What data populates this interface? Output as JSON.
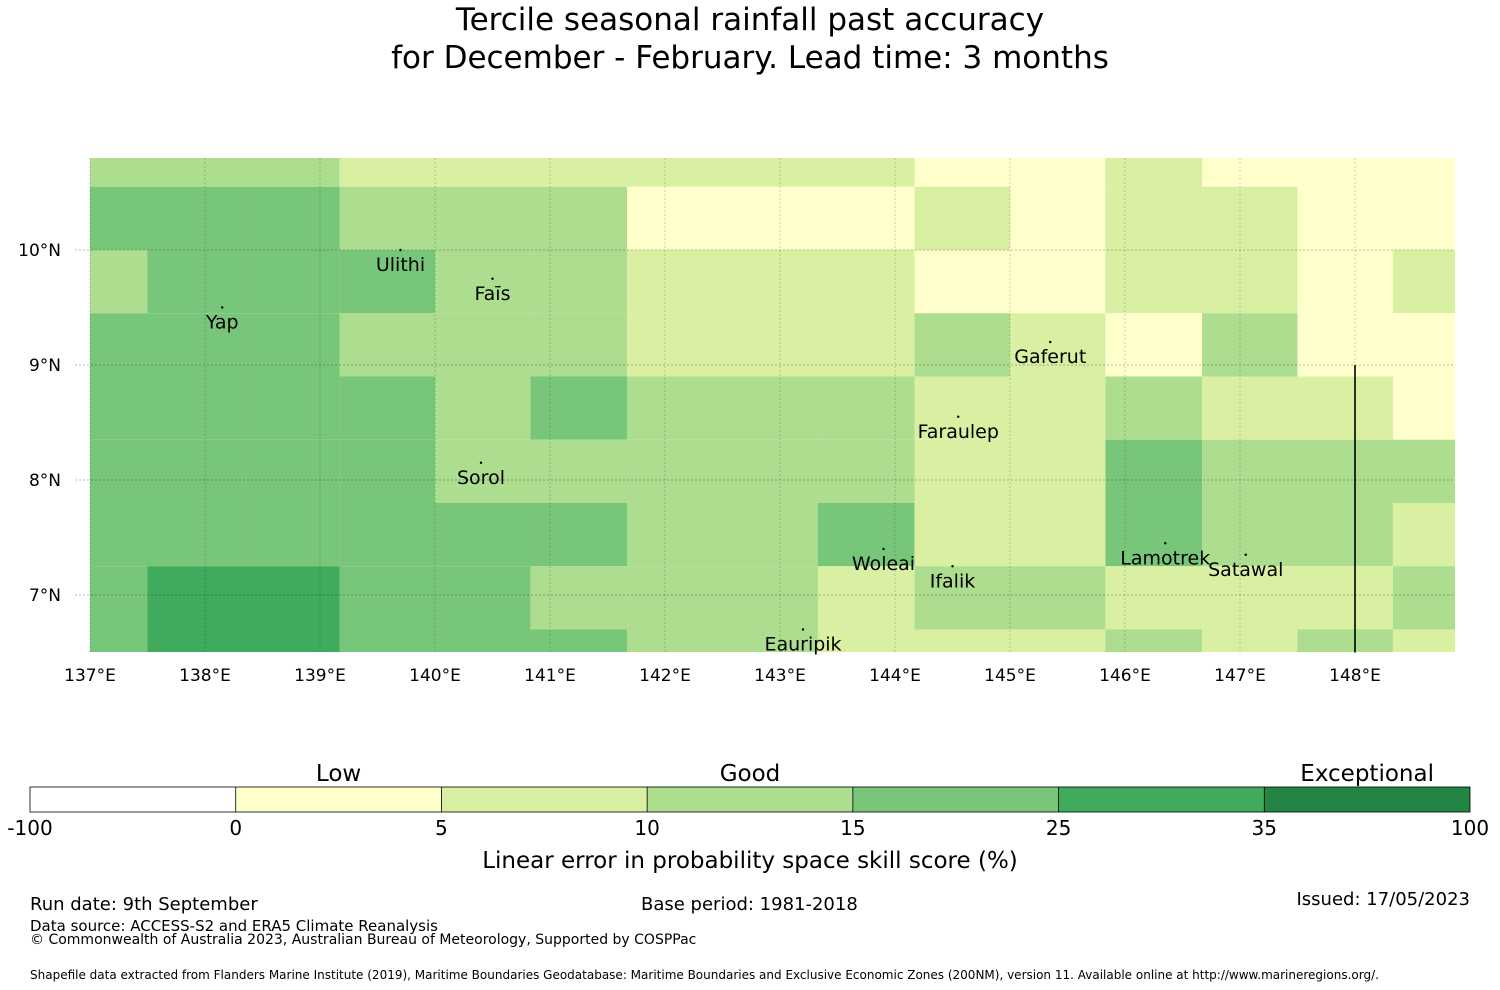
{
  "title": {
    "line1": "Tercile seasonal rainfall past accuracy",
    "line2": "for December - February. Lead time: 3 months"
  },
  "map": {
    "lon_ticks": [
      {
        "lon": 137,
        "label": "137°E"
      },
      {
        "lon": 138,
        "label": "138°E"
      },
      {
        "lon": 139,
        "label": "139°E"
      },
      {
        "lon": 140,
        "label": "140°E"
      },
      {
        "lon": 141,
        "label": "141°E"
      },
      {
        "lon": 142,
        "label": "142°E"
      },
      {
        "lon": 143,
        "label": "143°E"
      },
      {
        "lon": 144,
        "label": "144°E"
      },
      {
        "lon": 145,
        "label": "145°E"
      },
      {
        "lon": 146,
        "label": "146°E"
      },
      {
        "lon": 147,
        "label": "147°E"
      },
      {
        "lon": 148,
        "label": "148°E"
      }
    ],
    "lat_ticks": [
      {
        "lat": 10,
        "label": "10°N"
      },
      {
        "lat": 9,
        "label": "9°N"
      },
      {
        "lat": 8,
        "label": "8°N"
      },
      {
        "lat": 7,
        "label": "7°N"
      }
    ],
    "grid_columns_lon": [
      137,
      137.5,
      138.33,
      139.17,
      140,
      140.83,
      141.67,
      142.5,
      143.33,
      144.17,
      145,
      145.83,
      146.67,
      147.5,
      148.33,
      149
    ],
    "grid_rows_lat": [
      10.8,
      10.55,
      10.0,
      9.45,
      8.9,
      8.35,
      7.8,
      7.25,
      6.7,
      6.5
    ],
    "category_grid": [
      [
        3,
        3,
        3,
        2,
        2,
        2,
        2,
        2,
        2,
        1,
        1,
        2,
        1,
        1,
        1
      ],
      [
        4,
        4,
        4,
        3,
        3,
        3,
        1,
        1,
        1,
        2,
        1,
        2,
        2,
        1,
        1
      ],
      [
        3,
        4,
        4,
        4,
        3,
        3,
        2,
        2,
        2,
        1,
        1,
        2,
        2,
        1,
        2
      ],
      [
        4,
        4,
        4,
        3,
        3,
        3,
        2,
        2,
        2,
        3,
        2,
        1,
        3,
        1,
        1
      ],
      [
        4,
        4,
        4,
        4,
        3,
        4,
        3,
        3,
        3,
        2,
        2,
        3,
        2,
        2,
        1
      ],
      [
        4,
        4,
        4,
        4,
        3,
        3,
        3,
        3,
        3,
        2,
        2,
        4,
        3,
        3,
        3
      ],
      [
        4,
        4,
        4,
        4,
        4,
        4,
        3,
        3,
        4,
        2,
        2,
        4,
        3,
        3,
        2
      ],
      [
        4,
        5,
        5,
        4,
        4,
        3,
        3,
        3,
        2,
        3,
        3,
        2,
        2,
        2,
        3
      ],
      [
        4,
        5,
        5,
        4,
        4,
        4,
        3,
        3,
        2,
        2,
        2,
        3,
        2,
        3,
        2
      ]
    ],
    "category_note": "0:-100..0 white, 1:0..5, 2:5..10, 3:10..15, 4:15..25, 5:25..35, 6:35..100",
    "islands": [
      {
        "name": "Ulithi",
        "lon": 139.7,
        "lat": 10.0
      },
      {
        "name": "Faīs",
        "lon": 140.5,
        "lat": 9.75
      },
      {
        "name": "Yap",
        "lon": 138.15,
        "lat": 9.5
      },
      {
        "name": "Gaferut",
        "lon": 145.35,
        "lat": 9.2
      },
      {
        "name": "Faraulep",
        "lon": 144.55,
        "lat": 8.55
      },
      {
        "name": "Sorol",
        "lon": 140.4,
        "lat": 8.15
      },
      {
        "name": "Woleai",
        "lon": 143.9,
        "lat": 7.4
      },
      {
        "name": "Ifalik",
        "lon": 144.5,
        "lat": 7.25
      },
      {
        "name": "Lamotrek",
        "lon": 146.35,
        "lat": 7.45
      },
      {
        "name": "Satawal",
        "lon": 147.05,
        "lat": 7.35
      },
      {
        "name": "Eauripik",
        "lon": 143.2,
        "lat": 6.7
      }
    ],
    "boundary_line": {
      "lon": 148,
      "lat_from": 9.0,
      "lat_to": 6.5
    }
  },
  "colorbar": {
    "bounds": [
      -100,
      0,
      5,
      10,
      15,
      25,
      35,
      100
    ],
    "tick_labels": [
      "-100",
      "0",
      "5",
      "10",
      "15",
      "25",
      "35",
      "100"
    ],
    "colors": [
      "#ffffff",
      "#ffffcc",
      "#d9f0a3",
      "#addd8e",
      "#78c679",
      "#41ab5d",
      "#238443"
    ],
    "category_labels": [
      {
        "text": "Low",
        "bin": 1
      },
      {
        "text": "Good",
        "bin": 3
      },
      {
        "text": "Exceptional",
        "bin": 6
      }
    ],
    "label": "Linear error in probability space skill score (%)"
  },
  "footer": {
    "run_date": "Run date: 9th September",
    "base_period": "Base period: 1981-2018",
    "issued": "Issued: 17/05/2023",
    "data_source": "Data source: ACCESS-S2 and ERA5 Climate Reanalysis",
    "copyright": "© Commonwealth of Australia 2023, Australian Bureau of Meteorology, Supported by COSPPac",
    "shapefile": "Shapefile data extracted from Flanders Marine Institute (2019), Maritime Boundaries Geodatabase: Maritime Boundaries and Exclusive Economic Zones (200NM), version 11. Available online at http://www.marineregions.org/."
  }
}
